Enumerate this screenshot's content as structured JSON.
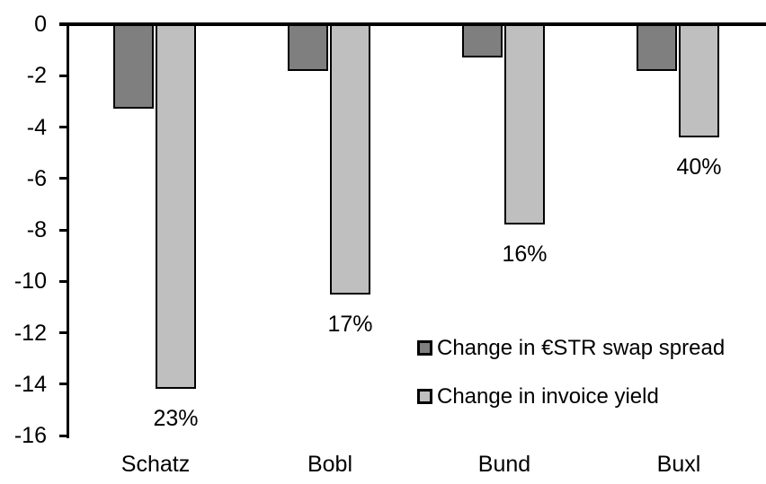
{
  "chart_data": {
    "type": "bar",
    "title": "",
    "xlabel": "",
    "ylabel": "",
    "categories": [
      "Schatz",
      "Bobl",
      "Bund",
      "Buxl"
    ],
    "series": [
      {
        "name": "Change in €STR swap spread",
        "color": "#7F7F7F",
        "values": [
          -3.3,
          -1.8,
          -1.3,
          -1.8
        ]
      },
      {
        "name": "Change in invoice yield",
        "color": "#BFBFBF",
        "values": [
          -14.2,
          -10.5,
          -7.8,
          -4.4
        ],
        "data_labels": [
          "23%",
          "17%",
          "16%",
          "40%"
        ]
      }
    ],
    "ylim": [
      -16,
      0
    ],
    "yticks": [
      0,
      -2,
      -4,
      -6,
      -8,
      -10,
      -12,
      -14,
      -16
    ],
    "ytick_labels": [
      "0",
      "-2",
      "-4",
      "-6",
      "-8",
      "-10",
      "-12",
      "-14",
      "-16"
    ],
    "grid": false,
    "legend_position": "inside-right",
    "axis_color": "#000000",
    "bar_outline_color": "#000000",
    "background_color": "#FFFFFF"
  }
}
